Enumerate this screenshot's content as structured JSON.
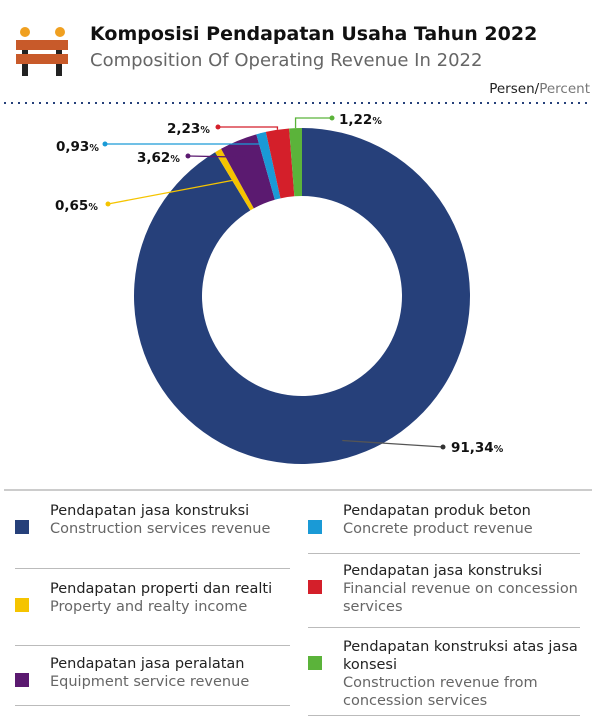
{
  "chart_data": {
    "type": "donut",
    "title": "Komposisi Pendapatan Usaha Tahun 2022",
    "subtitle": "Composition Of Operating Revenue In 2022",
    "unit_label_id": "Persen",
    "unit_separator": "/",
    "unit_label_en": "Percent",
    "categories": [
      "Pendapatan jasa konstruksi",
      "Pendapatan properti dan realti",
      "Pendapatan jasa peralatan",
      "Pendapatan produk beton",
      "Pendapatan jasa konstruksi",
      "Pendapatan konstruksi atas jasa konsesi"
    ],
    "categories_en": [
      "Construction services revenue",
      "Property and realty income",
      "Equipment service revenue",
      "Concrete product revenue",
      "Financial revenue on concession services",
      "Construction revenue from concession services"
    ],
    "values": [
      91.34,
      0.65,
      3.62,
      0.93,
      2.23,
      1.22
    ],
    "value_labels": [
      "91,34",
      "0,65",
      "3,62",
      "0,93",
      "2,23",
      "1,22"
    ],
    "value_label_suffix": "%",
    "colors": [
      "#26407a",
      "#f5c400",
      "#5b1a70",
      "#1a9ad6",
      "#d41f2a",
      "#5bb33a"
    ]
  }
}
